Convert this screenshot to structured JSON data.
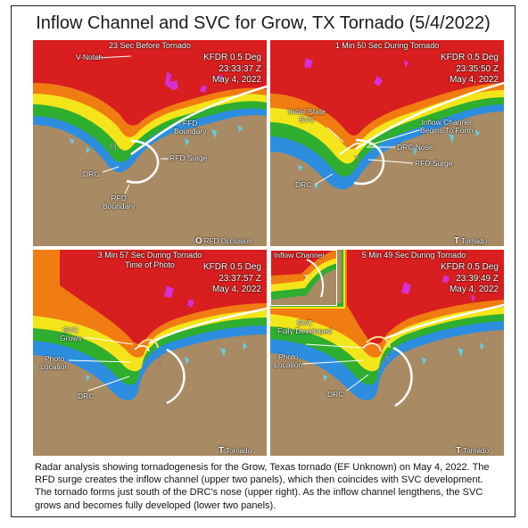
{
  "title": "Inflow Channel and SVC for Grow, TX Tornado",
  "title_date": "(5/4/2022)",
  "panels": [
    {
      "header": "23 Sec Before Tornado",
      "info": [
        "KFDR 0.5 Deg",
        "23:33:37 Z",
        "May 4, 2022"
      ],
      "labels": {
        "vnotch": "V-Notch",
        "ffd": "FFD\nBoundary",
        "rfd_surge": "RFD Surge",
        "drc": "DRC",
        "rfd_boundary": "RFD\nBoundary"
      },
      "legend_symbol": "O",
      "legend_text": "RFD Occlusion"
    },
    {
      "header": "1 Min 50 Sec During Tornado",
      "info": [
        "KFDR 0.5 Deg",
        "23:35:50 Z",
        "May 4, 2022"
      ],
      "labels": {
        "initial_svc": "Initial State\nSVC",
        "inflow": "Inflow Channel\nBegins To Form",
        "drc_nose": "DRC Nose",
        "rfd_surge": "RFD Surge",
        "drc": "DRC"
      },
      "legend_symbol": "T",
      "legend_text": "Tornado"
    },
    {
      "header": "3 Min 57 Sec During Tornado",
      "subheader": "Time of Photo",
      "info": [
        "KFDR 0.5 Deg",
        "23:37:57 Z",
        "May 4, 2022"
      ],
      "labels": {
        "svc": "SVC\nGrows",
        "photo": "Photo\nLocation",
        "drc": "DRC"
      },
      "legend_symbol": "T",
      "legend_text": "Tornado"
    },
    {
      "header": "5 Min 49 Sec During Tornado",
      "inset_label": "Inflow Channel",
      "info": [
        "KFDR 0.5 Deg",
        "23:39:49 Z",
        "May 4, 2022"
      ],
      "labels": {
        "svc": "SVC\nFully Developed",
        "photo": "Photo\nLocation",
        "drc": "DRC"
      },
      "legend_symbol": "T",
      "legend_text": "Tornado"
    }
  ],
  "caption": "Radar analysis showing tornadogenesis for the Grow, Texas tornado (EF Unknown) on May 4, 2022. The RFD surge creates the inflow channel (upper two panels), which then coincides with SVC development.  The tornado forms just south of the DRC's nose (upper right).  As the inflow channel lengthens, the SVC grows and becomes fully developed (lower two panels).",
  "colors": {
    "ground": "#a88b64",
    "red": "#d81e1e",
    "orange": "#f07c12",
    "yellow": "#f4e51b",
    "green": "#2fae2f",
    "blue": "#2d8ee0",
    "cyan": "#5fd0f0",
    "magenta": "#d62fd6"
  }
}
